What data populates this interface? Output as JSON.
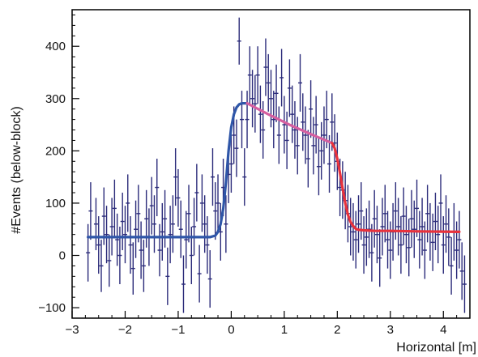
{
  "chart_data": {
    "type": "scatter",
    "title": "",
    "xlabel": "Horizontal [m]",
    "ylabel": "#Events (below-block)",
    "xlim": [
      -3,
      4.5
    ],
    "ylim": [
      -120,
      470
    ],
    "x_ticks": [
      -3,
      -2,
      -1,
      0,
      1,
      2,
      3,
      4
    ],
    "x_tick_labels": [
      "−3",
      "−2",
      "−1",
      "0",
      "1",
      "2",
      "3",
      "4"
    ],
    "y_ticks": [
      -100,
      0,
      100,
      200,
      300,
      400
    ],
    "y_tick_labels": [
      "−100",
      "0",
      "100",
      "200",
      "300",
      "400"
    ],
    "grid": false,
    "legend": "none",
    "colors": {
      "points": "#2b2b7a",
      "fit_left": "#2f56a8",
      "fit_middle": "#d65fa0",
      "fit_right": "#e8323c",
      "axes": "#000000"
    },
    "series": [
      {
        "kind": "data-points-with-error-bars",
        "x": [
          -2.7,
          -2.65,
          -2.55,
          -2.5,
          -2.45,
          -2.4,
          -2.35,
          -2.3,
          -2.25,
          -2.2,
          -2.15,
          -2.1,
          -2.05,
          -2.0,
          -1.95,
          -1.9,
          -1.85,
          -1.8,
          -1.75,
          -1.7,
          -1.65,
          -1.6,
          -1.55,
          -1.5,
          -1.45,
          -1.4,
          -1.35,
          -1.3,
          -1.25,
          -1.2,
          -1.15,
          -1.1,
          -1.05,
          -1.0,
          -0.95,
          -0.9,
          -0.85,
          -0.8,
          -0.75,
          -0.7,
          -0.65,
          -0.6,
          -0.55,
          -0.5,
          -0.45,
          -0.4,
          -0.35,
          -0.3,
          -0.25,
          -0.2,
          -0.15,
          -0.1,
          -0.05,
          0.0,
          0.05,
          0.1,
          0.15,
          0.2,
          0.25,
          0.3,
          0.35,
          0.4,
          0.45,
          0.5,
          0.55,
          0.6,
          0.65,
          0.7,
          0.75,
          0.8,
          0.85,
          0.9,
          0.95,
          1.0,
          1.05,
          1.1,
          1.15,
          1.2,
          1.25,
          1.3,
          1.35,
          1.4,
          1.45,
          1.5,
          1.55,
          1.6,
          1.65,
          1.7,
          1.75,
          1.8,
          1.85,
          1.9,
          1.95,
          2.0,
          2.05,
          2.1,
          2.15,
          2.2,
          2.25,
          2.3,
          2.35,
          2.4,
          2.45,
          2.5,
          2.55,
          2.6,
          2.65,
          2.7,
          2.75,
          2.8,
          2.85,
          2.9,
          2.95,
          3.0,
          3.05,
          3.1,
          3.15,
          3.2,
          3.25,
          3.3,
          3.35,
          3.4,
          3.45,
          3.5,
          3.55,
          3.6,
          3.65,
          3.7,
          3.75,
          3.8,
          3.85,
          3.9,
          3.95,
          4.0,
          4.05,
          4.1,
          4.15,
          4.2,
          4.25,
          4.3,
          4.35,
          4.4
        ],
        "y": [
          5,
          85,
          60,
          20,
          -20,
          75,
          40,
          -10,
          55,
          90,
          30,
          0,
          65,
          40,
          100,
          20,
          -25,
          50,
          80,
          10,
          -20,
          70,
          35,
          95,
          60,
          130,
          10,
          45,
          70,
          -40,
          40,
          60,
          150,
          110,
          50,
          -55,
          30,
          80,
          0,
          55,
          120,
          -35,
          100,
          60,
          20,
          -45,
          150,
          85,
          100,
          45,
          130,
          60,
          155,
          175,
          230,
          205,
          410,
          260,
          150,
          260,
          345,
          300,
          290,
          345,
          270,
          240,
          360,
          330,
          300,
          260,
          310,
          230,
          340,
          250,
          220,
          320,
          270,
          240,
          210,
          330,
          255,
          230,
          185,
          280,
          210,
          250,
          170,
          200,
          230,
          260,
          175,
          255,
          215,
          180,
          130,
          125,
          105,
          80,
          55,
          45,
          30,
          60,
          85,
          20,
          35,
          50,
          5,
          70,
          40,
          -5,
          55,
          80,
          30,
          10,
          45,
          85,
          55,
          20,
          75,
          40,
          15,
          70,
          50,
          90,
          30,
          55,
          10,
          80,
          45,
          25,
          65,
          40,
          100,
          20,
          60,
          35,
          -20,
          45,
          10,
          30,
          -30,
          -55
        ],
        "yerr": [
          55,
          55,
          50,
          55,
          50,
          55,
          55,
          50,
          55,
          55,
          50,
          55,
          55,
          55,
          55,
          55,
          50,
          55,
          55,
          55,
          50,
          55,
          55,
          55,
          55,
          55,
          50,
          55,
          55,
          55,
          55,
          55,
          55,
          55,
          55,
          55,
          55,
          55,
          55,
          55,
          55,
          55,
          55,
          55,
          55,
          55,
          55,
          55,
          55,
          55,
          55,
          55,
          55,
          55,
          55,
          55,
          45,
          55,
          55,
          55,
          55,
          55,
          55,
          55,
          55,
          55,
          55,
          55,
          55,
          55,
          55,
          55,
          55,
          55,
          55,
          55,
          55,
          55,
          55,
          55,
          55,
          55,
          55,
          55,
          55,
          55,
          55,
          55,
          55,
          55,
          55,
          55,
          55,
          55,
          55,
          55,
          55,
          55,
          55,
          55,
          55,
          55,
          55,
          55,
          55,
          55,
          55,
          55,
          55,
          55,
          55,
          55,
          55,
          55,
          55,
          55,
          55,
          55,
          55,
          55,
          55,
          55,
          55,
          55,
          55,
          55,
          55,
          55,
          55,
          55,
          55,
          55,
          55,
          55,
          55,
          55,
          55,
          55,
          55,
          55,
          55,
          55
        ]
      },
      {
        "kind": "fit-left",
        "x": [
          -2.7,
          -0.4,
          -0.3,
          -0.25,
          -0.2,
          -0.15,
          -0.1,
          -0.05,
          0.0,
          0.05,
          0.1,
          0.15,
          0.2,
          0.3
        ],
        "y": [
          35,
          35,
          38,
          45,
          60,
          90,
          140,
          200,
          245,
          270,
          283,
          289,
          291,
          291
        ]
      },
      {
        "kind": "fit-middle",
        "x": [
          0.3,
          0.7,
          1.1,
          1.5,
          1.9
        ],
        "y": [
          291,
          270,
          250,
          232,
          215
        ]
      },
      {
        "kind": "fit-right",
        "x": [
          1.9,
          1.95,
          2.0,
          2.05,
          2.1,
          2.15,
          2.2,
          2.25,
          2.3,
          2.35,
          2.4,
          2.5,
          2.7,
          3.0,
          3.5,
          4.3
        ],
        "y": [
          215,
          205,
          185,
          158,
          128,
          100,
          78,
          64,
          56,
          51,
          49,
          48,
          47,
          47,
          46,
          45
        ]
      }
    ]
  }
}
